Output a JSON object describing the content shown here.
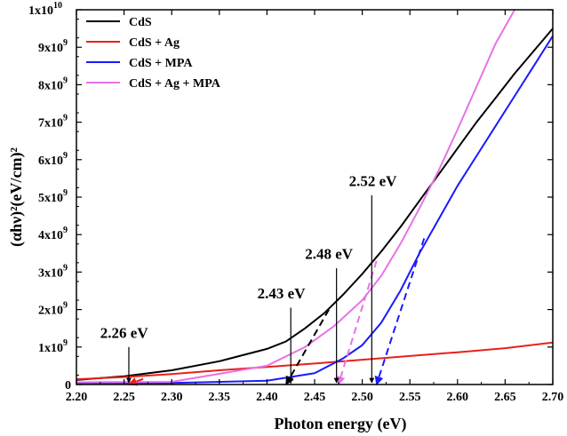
{
  "chart_data": {
    "type": "line",
    "title": "",
    "xlabel": "Photon energy (eV)",
    "ylabel": "(αhν)²(eV/cm)²",
    "xlim": [
      2.2,
      2.7
    ],
    "ylim": [
      0,
      10000000000
    ],
    "x_ticks": [
      "2.20",
      "2.25",
      "2.30",
      "2.35",
      "2.40",
      "2.45",
      "2.50",
      "2.55",
      "2.60",
      "2.65",
      "2.70"
    ],
    "y_ticks": [
      {
        "value": 0,
        "mantissa": "0",
        "exp": ""
      },
      {
        "value": 1000000000,
        "mantissa": "1x10",
        "exp": "9"
      },
      {
        "value": 2000000000,
        "mantissa": "2x10",
        "exp": "9"
      },
      {
        "value": 3000000000,
        "mantissa": "3x10",
        "exp": "9"
      },
      {
        "value": 4000000000,
        "mantissa": "4x10",
        "exp": "9"
      },
      {
        "value": 5000000000,
        "mantissa": "5x10",
        "exp": "9"
      },
      {
        "value": 6000000000,
        "mantissa": "6x10",
        "exp": "9"
      },
      {
        "value": 7000000000,
        "mantissa": "7x10",
        "exp": "9"
      },
      {
        "value": 8000000000,
        "mantissa": "8x10",
        "exp": "9"
      },
      {
        "value": 9000000000,
        "mantissa": "9x10",
        "exp": "9"
      },
      {
        "value": 10000000000,
        "mantissa": "1x10",
        "exp": "10"
      }
    ],
    "legend_position": "top-left",
    "series": [
      {
        "name": "CdS",
        "color": "#000000",
        "points": [
          [
            2.2,
            120000000.0
          ],
          [
            2.25,
            220000000.0
          ],
          [
            2.3,
            380000000.0
          ],
          [
            2.35,
            620000000.0
          ],
          [
            2.4,
            950000000.0
          ],
          [
            2.42,
            1150000000.0
          ],
          [
            2.44,
            1500000000.0
          ],
          [
            2.46,
            1900000000.0
          ],
          [
            2.48,
            2400000000.0
          ],
          [
            2.5,
            2950000000.0
          ],
          [
            2.52,
            3550000000.0
          ],
          [
            2.54,
            4200000000.0
          ],
          [
            2.56,
            4900000000.0
          ],
          [
            2.58,
            5600000000.0
          ],
          [
            2.6,
            6300000000.0
          ],
          [
            2.62,
            7000000000.0
          ],
          [
            2.64,
            7650000000.0
          ],
          [
            2.66,
            8300000000.0
          ],
          [
            2.68,
            8900000000.0
          ],
          [
            2.7,
            9500000000.0
          ]
        ]
      },
      {
        "name": "CdS + Ag",
        "color": "#e8201a",
        "points": [
          [
            2.2,
            140000000.0
          ],
          [
            2.25,
            200000000.0
          ],
          [
            2.3,
            280000000.0
          ],
          [
            2.35,
            380000000.0
          ],
          [
            2.4,
            470000000.0
          ],
          [
            2.45,
            560000000.0
          ],
          [
            2.5,
            660000000.0
          ],
          [
            2.55,
            760000000.0
          ],
          [
            2.6,
            860000000.0
          ],
          [
            2.65,
            970000000.0
          ],
          [
            2.7,
            1120000000.0
          ]
        ]
      },
      {
        "name": "CdS + MPA",
        "color": "#1a1aff",
        "points": [
          [
            2.2,
            40000000.0
          ],
          [
            2.3,
            40000000.0
          ],
          [
            2.4,
            100000000.0
          ],
          [
            2.45,
            300000000.0
          ],
          [
            2.48,
            700000000.0
          ],
          [
            2.5,
            1050000000.0
          ],
          [
            2.52,
            1650000000.0
          ],
          [
            2.54,
            2500000000.0
          ],
          [
            2.56,
            3500000000.0
          ],
          [
            2.58,
            4400000000.0
          ],
          [
            2.6,
            5300000000.0
          ],
          [
            2.62,
            6100000000.0
          ],
          [
            2.64,
            6900000000.0
          ],
          [
            2.66,
            7700000000.0
          ],
          [
            2.68,
            8500000000.0
          ],
          [
            2.7,
            9300000000.0
          ]
        ]
      },
      {
        "name": "CdS + Ag + MPA",
        "color": "#e872e8",
        "points": [
          [
            2.2,
            60000000.0
          ],
          [
            2.3,
            70000000.0
          ],
          [
            2.4,
            500000000.0
          ],
          [
            2.44,
            1000000000.0
          ],
          [
            2.47,
            1550000000.0
          ],
          [
            2.5,
            2250000000.0
          ],
          [
            2.52,
            2900000000.0
          ],
          [
            2.54,
            3750000000.0
          ],
          [
            2.56,
            4700000000.0
          ],
          [
            2.58,
            5700000000.0
          ],
          [
            2.6,
            6800000000.0
          ],
          [
            2.62,
            7950000000.0
          ],
          [
            2.64,
            9100000000.0
          ],
          [
            2.66,
            10000000000.0
          ]
        ]
      }
    ],
    "tangent_lines": [
      {
        "color": "#000000",
        "from": [
          2.42,
          0.0
        ],
        "to": [
          2.465,
          2000000000.0
        ]
      },
      {
        "color": "#e8201a",
        "from": [
          2.255,
          0.0
        ],
        "to": [
          2.27,
          150000000.0
        ]
      },
      {
        "color": "#1a1aff",
        "from": [
          2.515,
          0.0
        ],
        "to": [
          2.565,
          3900000000.0
        ]
      },
      {
        "color": "#e872e8",
        "from": [
          2.475,
          0.0
        ],
        "to": [
          2.515,
          3300000000.0
        ]
      }
    ],
    "annotations": [
      {
        "text": "2.26 eV",
        "x": 2.255,
        "y_top": 1000000000.0,
        "label_y": 1250000000.0,
        "label_x": 2.225
      },
      {
        "text": "2.43 eV",
        "x": 2.425,
        "y_top": 2050000000.0,
        "label_y": 2300000000.0,
        "label_x": 2.39
      },
      {
        "text": "2.48 eV",
        "x": 2.473,
        "y_top": 3100000000.0,
        "label_y": 3350000000.0,
        "label_x": 2.44
      },
      {
        "text": "2.52 eV",
        "x": 2.51,
        "y_top": 5050000000.0,
        "label_y": 5300000000.0,
        "label_x": 2.486
      }
    ]
  }
}
